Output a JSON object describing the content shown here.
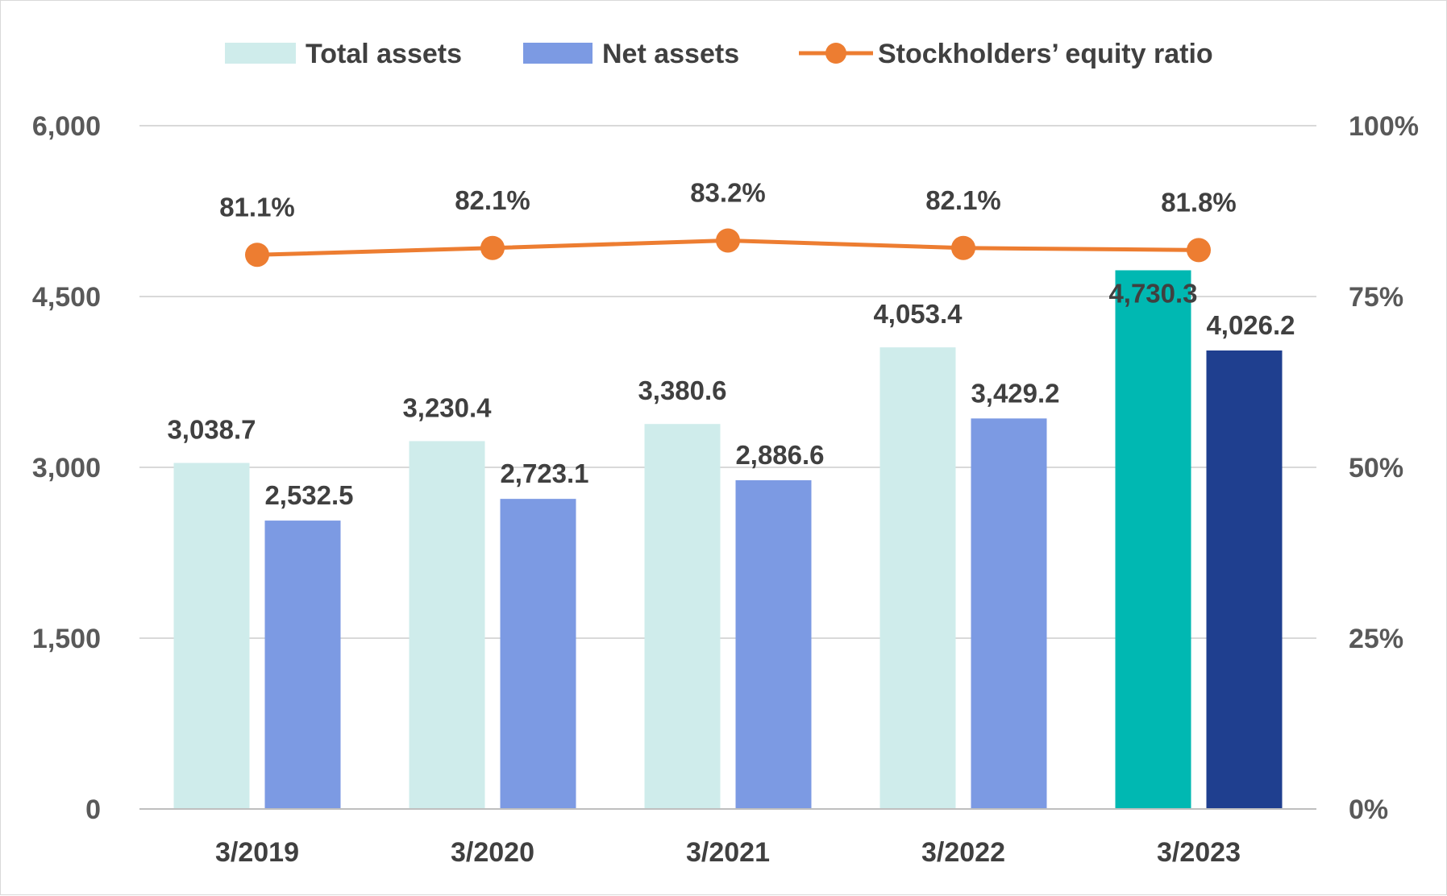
{
  "chart_data": {
    "type": "bar",
    "categories": [
      "3/2019",
      "3/2020",
      "3/2021",
      "3/2022",
      "3/2023"
    ],
    "series": [
      {
        "name": "Total assets",
        "kind": "bar",
        "axis": "left",
        "values": [
          3038.7,
          3230.4,
          3380.6,
          4053.4,
          4730.3
        ],
        "labels": [
          "3,038.7",
          "3,230.4",
          "3,380.6",
          "4,053.4",
          "4,730.3"
        ],
        "color": "#cfeceb",
        "highlight_color": "#00b8b2"
      },
      {
        "name": "Net assets",
        "kind": "bar",
        "axis": "left",
        "values": [
          2532.5,
          2723.1,
          2886.6,
          3429.2,
          4026.2
        ],
        "labels": [
          "2,532.5",
          "2,723.1",
          "2,886.6",
          "3,429.2",
          "4,026.2"
        ],
        "color": "#7c9ae3",
        "highlight_color": "#1f3f8f"
      },
      {
        "name": "Stockholders’ equity ratio",
        "kind": "line",
        "axis": "right",
        "values": [
          81.1,
          82.1,
          83.2,
          82.1,
          81.8
        ],
        "labels": [
          "81.1%",
          "82.1%",
          "83.2%",
          "82.1%",
          "81.8%"
        ],
        "color": "#ed7d31"
      }
    ],
    "highlight_category_index": 4,
    "y_left": {
      "range": [
        0,
        6000
      ],
      "ticks": [
        0,
        1500,
        3000,
        4500,
        6000
      ],
      "tick_labels": [
        "0",
        "1,500",
        "3,000",
        "4,500",
        "6,000"
      ]
    },
    "y_right": {
      "range": [
        0,
        100
      ],
      "ticks": [
        0,
        25,
        50,
        75,
        100
      ],
      "tick_labels": [
        "0%",
        "25%",
        "50%",
        "75%",
        "100%"
      ]
    },
    "grid": true,
    "gridline_color": "#d9d9d9",
    "legend_position": "top"
  }
}
